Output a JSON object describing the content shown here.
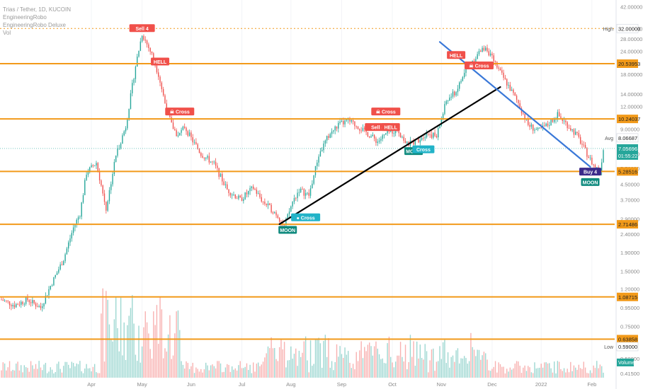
{
  "header": {
    "symbol": "Trias / Tether, 1D, KUCOIN",
    "indicators": [
      "EngineeringRobo",
      "EngineeringRobo Deluxe",
      "Vol"
    ]
  },
  "chart_data": {
    "type": "candlestick",
    "y_scale": "log",
    "ylim": [
      0.4,
      45.0
    ],
    "x_ticks": [
      {
        "t": 55,
        "label": "Apr"
      },
      {
        "t": 86,
        "label": "May"
      },
      {
        "t": 116,
        "label": "Jun"
      },
      {
        "t": 147,
        "label": "Jul"
      },
      {
        "t": 177,
        "label": "Aug"
      },
      {
        "t": 208,
        "label": "Sep"
      },
      {
        "t": 239,
        "label": "Oct"
      },
      {
        "t": 269,
        "label": "Nov"
      },
      {
        "t": 300,
        "label": "Dec"
      },
      {
        "t": 330,
        "label": "2022"
      },
      {
        "t": 361,
        "label": "Feb"
      }
    ],
    "t_range": [
      0,
      368
    ],
    "y_ticks": [
      "42.00000",
      "32.00000",
      "28.00000",
      "24.00000",
      "18.00000",
      "14.00000",
      "12.00000",
      "9.00000",
      "6.60000",
      "5.50000",
      "4.50000",
      "3.70000",
      "2.90000",
      "2.40000",
      "1.90000",
      "1.50000",
      "1.20000",
      "0.95000",
      "0.75000",
      "0.50000",
      "0.41500"
    ],
    "levels": [
      {
        "price": 20.53953,
        "label": "20.53953"
      },
      {
        "price": 10.24037,
        "label": "10.24037"
      },
      {
        "price": 5.28516,
        "label": "5.28516"
      },
      {
        "price": 2.71486,
        "label": "2.71486"
      },
      {
        "price": 1.08715,
        "label": "1.08715"
      },
      {
        "price": 0.63858,
        "label": "0.63858"
      }
    ],
    "high": {
      "label": "High",
      "price": 32.0,
      "value": "32.00000"
    },
    "low": {
      "label": "Low",
      "price": 0.59,
      "value": "0.59000"
    },
    "avg": {
      "label": "Avg",
      "price": 8.06687,
      "value": "8.06687"
    },
    "last": {
      "price": 7.05696,
      "value": "7.05696",
      "countdown": "01:55:22"
    },
    "volume_label": "Volume",
    "trendlines": [
      {
        "color": "#000000",
        "from": {
          "t": 170,
          "price": 2.72
        },
        "to": {
          "t": 305,
          "price": 15.3
        }
      },
      {
        "color": "#3a78d8",
        "from": {
          "t": 268,
          "price": 27.0
        },
        "to": {
          "t": 360,
          "price": 5.6
        }
      }
    ],
    "signals": [
      {
        "t": 86,
        "price": 32.0,
        "text": "Sell 4",
        "kind": "sell"
      },
      {
        "t": 97,
        "price": 21.0,
        "text": "HELL",
        "kind": "sell"
      },
      {
        "t": 109,
        "price": 11.2,
        "text": "☠ Cross",
        "kind": "sell"
      },
      {
        "t": 235,
        "price": 11.2,
        "text": "☠ Cross",
        "kind": "sell"
      },
      {
        "t": 230,
        "price": 9.2,
        "text": "Sell 4",
        "kind": "sell"
      },
      {
        "t": 238,
        "price": 9.2,
        "text": "HELL",
        "kind": "sell"
      },
      {
        "t": 278,
        "price": 22.8,
        "text": "HELL",
        "kind": "sell"
      },
      {
        "t": 292,
        "price": 20.0,
        "text": "☠ Cross",
        "kind": "sell"
      },
      {
        "t": 175,
        "price": 2.52,
        "text": "MOON",
        "kind": "buy"
      },
      {
        "t": 186,
        "price": 2.95,
        "text": "● Cross",
        "kind": "buycross"
      },
      {
        "t": 252,
        "price": 6.8,
        "text": "MOON",
        "kind": "buy"
      },
      {
        "t": 258,
        "price": 6.95,
        "text": "Cross",
        "kind": "buycross"
      },
      {
        "t": 360,
        "price": 5.25,
        "text": "Buy 4",
        "kind": "buy4"
      },
      {
        "t": 360,
        "price": 4.6,
        "text": "MOON",
        "kind": "buy"
      }
    ],
    "price_anchors": [
      [
        0,
        1.05
      ],
      [
        8,
        0.98
      ],
      [
        16,
        1.05
      ],
      [
        24,
        0.95
      ],
      [
        30,
        1.25
      ],
      [
        38,
        1.75
      ],
      [
        44,
        2.6
      ],
      [
        48,
        3.1
      ],
      [
        52,
        5.2
      ],
      [
        58,
        5.9
      ],
      [
        64,
        3.3
      ],
      [
        70,
        6.5
      ],
      [
        76,
        9.3
      ],
      [
        82,
        20.0
      ],
      [
        86,
        30.0
      ],
      [
        92,
        23.0
      ],
      [
        96,
        18.0
      ],
      [
        100,
        12.5
      ],
      [
        104,
        9.5
      ],
      [
        108,
        8.2
      ],
      [
        112,
        9.3
      ],
      [
        116,
        8.0
      ],
      [
        122,
        6.6
      ],
      [
        130,
        5.8
      ],
      [
        138,
        4.2
      ],
      [
        146,
        3.7
      ],
      [
        154,
        4.3
      ],
      [
        160,
        3.6
      ],
      [
        168,
        3.1
      ],
      [
        173,
        2.65
      ],
      [
        178,
        3.6
      ],
      [
        182,
        4.2
      ],
      [
        188,
        3.9
      ],
      [
        194,
        6.5
      ],
      [
        200,
        8.3
      ],
      [
        206,
        9.5
      ],
      [
        212,
        10.0
      ],
      [
        218,
        9.3
      ],
      [
        224,
        8.5
      ],
      [
        230,
        7.7
      ],
      [
        236,
        8.6
      ],
      [
        242,
        9.0
      ],
      [
        248,
        7.4
      ],
      [
        254,
        7.8
      ],
      [
        260,
        8.6
      ],
      [
        266,
        8.2
      ],
      [
        272,
        12.8
      ],
      [
        278,
        14.5
      ],
      [
        284,
        19.0
      ],
      [
        290,
        22.5
      ],
      [
        296,
        25.5
      ],
      [
        300,
        22.0
      ],
      [
        304,
        19.0
      ],
      [
        310,
        15.5
      ],
      [
        316,
        12.5
      ],
      [
        322,
        9.5
      ],
      [
        328,
        8.8
      ],
      [
        334,
        9.5
      ],
      [
        340,
        10.8
      ],
      [
        346,
        9.5
      ],
      [
        352,
        8.3
      ],
      [
        358,
        6.6
      ],
      [
        362,
        5.7
      ],
      [
        366,
        5.3
      ],
      [
        368,
        7.06
      ]
    ]
  }
}
